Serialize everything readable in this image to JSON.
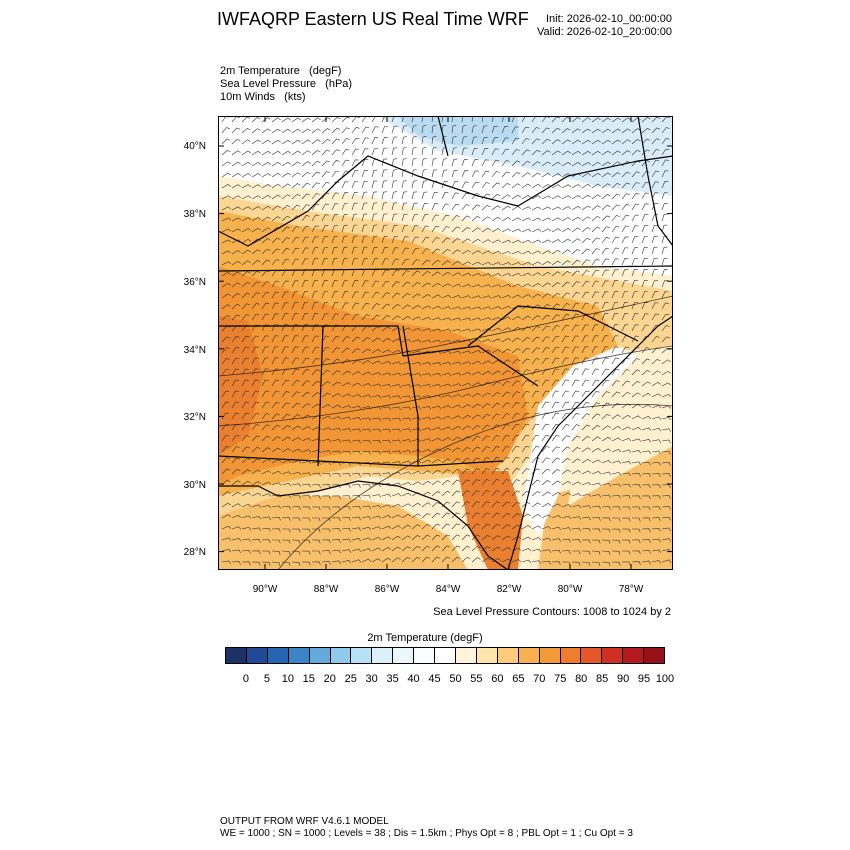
{
  "header": {
    "title": "IWFAQRP Eastern US Real Time WRF",
    "init": "Init: 2026-02-10_00:00:00",
    "valid": "Valid: 2026-02-10_20:00:00"
  },
  "fields": [
    "2m Temperature   (degF)",
    "Sea Level Pressure   (hPa)",
    "10m Winds   (kts)"
  ],
  "map": {
    "lat_labels": [
      "40°N",
      "38°N",
      "36°N",
      "34°N",
      "32°N",
      "30°N",
      "28°N"
    ],
    "lon_labels": [
      "90°W",
      "88°W",
      "86°W",
      "84°W",
      "82°W",
      "80°W",
      "78°W"
    ],
    "colors": {
      "cool": "#d9ecf8",
      "cold": "#b9dcf2",
      "neutral": "#ffffff",
      "pale": "#fff0cf",
      "light": "#fbd592",
      "warm": "#f8b24d",
      "hot": "#f19535",
      "hotter": "#ea7f2f",
      "ocean_warm": "#f9c06b"
    }
  },
  "slp_note": "Sea Level Pressure Contours: 1008 to 1024 by 2",
  "colorbar": {
    "title": "2m Temperature  (degF)",
    "colors": [
      "#1c3266",
      "#1e4996",
      "#2464b1",
      "#3a85c6",
      "#62aada",
      "#8dcaeb",
      "#b7e1f5",
      "#daf0fa",
      "#ecf7fc",
      "#fafdff",
      "#ffffff",
      "#fff3da",
      "#ffe4ac",
      "#fdcb79",
      "#f9b04e",
      "#f59a38",
      "#ef7d2b",
      "#e55628",
      "#d03023",
      "#b3191e",
      "#961017"
    ],
    "labels": [
      "0",
      "5",
      "10",
      "15",
      "20",
      "25",
      "30",
      "35",
      "40",
      "45",
      "50",
      "55",
      "60",
      "65",
      "70",
      "75",
      "80",
      "85",
      "90",
      "95",
      "100"
    ]
  },
  "footer": {
    "line1": "OUTPUT FROM WRF V4.6.1 MODEL",
    "line2": "WE = 1000 ; SN = 1000 ; Levels = 38 ; Dis = 1.5km ; Phys Opt = 8 ; PBL Opt = 1 ; Cu Opt = 3"
  }
}
